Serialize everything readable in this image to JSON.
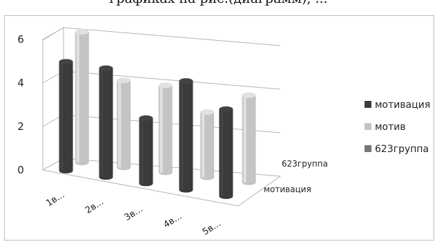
{
  "header_fragment": "графиках на рис.(диаграмм), ...",
  "colors": {
    "series_dark": "#3a3a3a",
    "series_light": "#c4c4c4",
    "series_mid": "#777777",
    "grid": "#b4b4b4",
    "border": "#bdbdbd"
  },
  "chart_data": {
    "type": "bar",
    "style": "3d-clustered-column",
    "categories": [
      "1в...",
      "2в...",
      "3в...",
      "4в...",
      "5в..."
    ],
    "depth_labels": [
      "623группа",
      "мотивация"
    ],
    "series": [
      {
        "name": "мотивация",
        "values": [
          5,
          5,
          3,
          5,
          4
        ],
        "color": "#3a3a3a"
      },
      {
        "name": "мотив",
        "values": [
          6,
          4,
          4,
          3,
          4
        ],
        "color": "#c4c4c4"
      },
      {
        "name": "623группа",
        "values": [
          0,
          0,
          0,
          0,
          0
        ],
        "color": "#777777"
      }
    ],
    "ylim": [
      0,
      6
    ],
    "yticks": [
      "0",
      "2",
      "4",
      "6"
    ],
    "grid": true,
    "legend_position": "right"
  }
}
